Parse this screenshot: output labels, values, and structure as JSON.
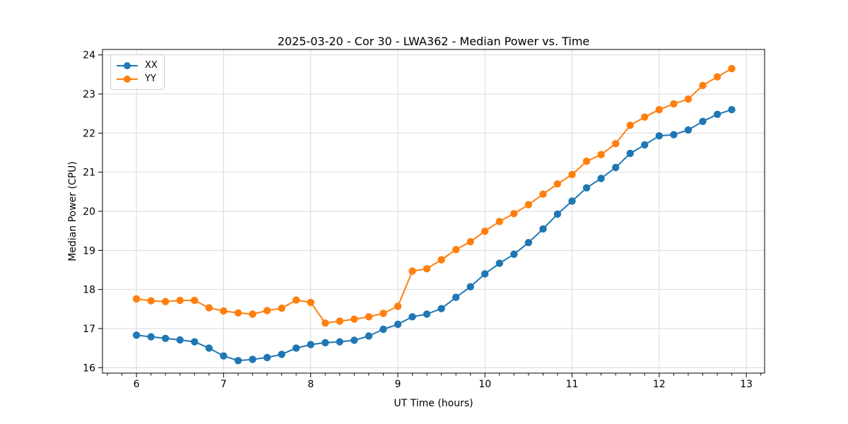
{
  "chart_data": {
    "type": "line",
    "title": "2025-03-20 - Cor 30 - LWA362 - Median Power vs. Time",
    "xlabel": "UT Time (hours)",
    "ylabel": "Median Power (CPU)",
    "x": [
      6.0,
      6.167,
      6.333,
      6.5,
      6.667,
      6.833,
      7.0,
      7.167,
      7.333,
      7.5,
      7.667,
      7.833,
      8.0,
      8.167,
      8.333,
      8.5,
      8.667,
      8.833,
      9.0,
      9.167,
      9.333,
      9.5,
      9.667,
      9.833,
      10.0,
      10.167,
      10.333,
      10.5,
      10.667,
      10.833,
      11.0,
      11.167,
      11.333,
      11.5,
      11.667,
      11.833,
      12.0,
      12.167,
      12.333,
      12.5,
      12.667,
      12.833
    ],
    "series": [
      {
        "name": "XX",
        "color": "#1f77b4",
        "values": [
          16.83,
          16.79,
          16.75,
          16.71,
          16.66,
          16.5,
          16.3,
          16.18,
          16.21,
          16.26,
          16.34,
          16.5,
          16.59,
          16.64,
          16.66,
          16.7,
          16.81,
          16.98,
          17.11,
          17.3,
          17.37,
          17.51,
          17.8,
          18.07,
          18.4,
          18.67,
          18.9,
          19.2,
          19.55,
          19.93,
          20.26,
          20.6,
          20.84,
          21.12,
          21.48,
          21.7,
          21.93,
          21.96,
          22.08,
          22.3,
          22.48,
          22.6
        ]
      },
      {
        "name": "YY",
        "color": "#ff7f0e",
        "values": [
          17.76,
          17.71,
          17.69,
          17.72,
          17.72,
          17.53,
          17.45,
          17.4,
          17.37,
          17.46,
          17.52,
          17.73,
          17.67,
          17.14,
          17.19,
          17.24,
          17.3,
          17.39,
          17.57,
          18.47,
          18.53,
          18.76,
          19.02,
          19.22,
          19.49,
          19.74,
          19.94,
          20.17,
          20.44,
          20.7,
          20.94,
          21.28,
          21.45,
          21.73,
          22.2,
          22.41,
          22.6,
          22.75,
          22.87,
          23.22,
          23.44,
          23.65
        ]
      }
    ],
    "x_ticks": [
      6,
      7,
      8,
      9,
      10,
      11,
      12,
      13
    ],
    "y_ticks": [
      16,
      17,
      18,
      19,
      20,
      21,
      22,
      23,
      24
    ],
    "xlim": [
      5.61,
      13.21
    ],
    "ylim": [
      15.86,
      24.14
    ],
    "x_minor_tick_step": 0.16667,
    "grid": true,
    "grid_color": "#d9d9d9",
    "legend_position": "upper left",
    "marker": "circle"
  }
}
